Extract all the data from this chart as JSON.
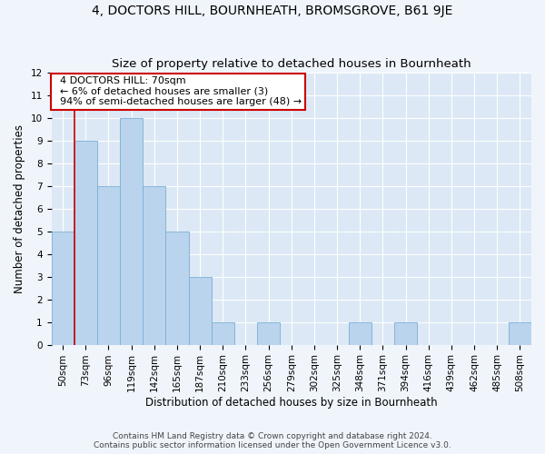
{
  "title": "4, DOCTORS HILL, BOURNHEATH, BROMSGROVE, B61 9JE",
  "subtitle": "Size of property relative to detached houses in Bournheath",
  "xlabel": "Distribution of detached houses by size in Bournheath",
  "ylabel": "Number of detached properties",
  "categories": [
    "50sqm",
    "73sqm",
    "96sqm",
    "119sqm",
    "142sqm",
    "165sqm",
    "187sqm",
    "210sqm",
    "233sqm",
    "256sqm",
    "279sqm",
    "302sqm",
    "325sqm",
    "348sqm",
    "371sqm",
    "394sqm",
    "416sqm",
    "439sqm",
    "462sqm",
    "485sqm",
    "508sqm"
  ],
  "values": [
    5,
    9,
    7,
    10,
    7,
    5,
    3,
    1,
    0,
    1,
    0,
    0,
    0,
    1,
    0,
    1,
    0,
    0,
    0,
    0,
    1
  ],
  "bar_color": "#bad4ed",
  "bar_edge_color": "#7aafd4",
  "bar_width": 1.0,
  "ylim": [
    0,
    12
  ],
  "yticks": [
    0,
    1,
    2,
    3,
    4,
    5,
    6,
    7,
    8,
    9,
    10,
    11,
    12
  ],
  "annotation_text": "  4 DOCTORS HILL: 70sqm\n  ← 6% of detached houses are smaller (3)\n  94% of semi-detached houses are larger (48) →",
  "vline_x_index": 1,
  "vline_color": "#cc0000",
  "background_color": "#dce8f5",
  "fig_background_color": "#f0f5fc",
  "grid_color": "#ffffff",
  "footer_line1": "Contains HM Land Registry data © Crown copyright and database right 2024.",
  "footer_line2": "Contains public sector information licensed under the Open Government Licence v3.0.",
  "title_fontsize": 10,
  "subtitle_fontsize": 9.5,
  "axis_label_fontsize": 8.5,
  "tick_fontsize": 7.5,
  "annotation_fontsize": 8,
  "footer_fontsize": 6.5
}
